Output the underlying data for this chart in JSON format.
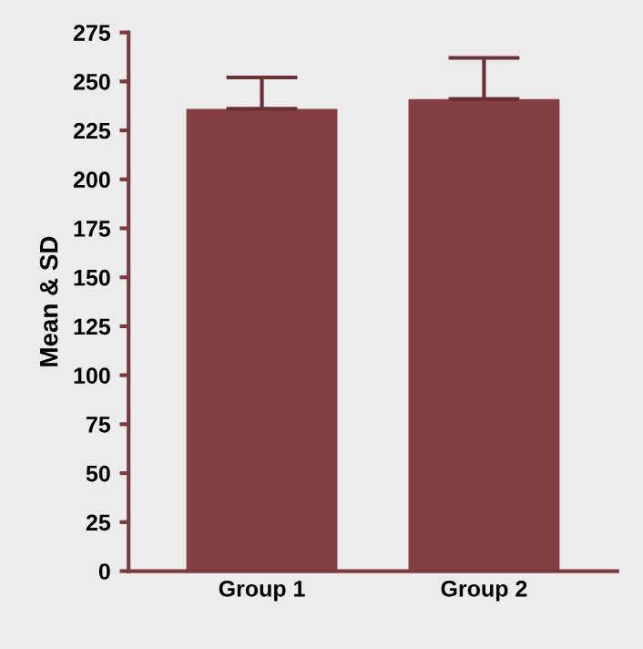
{
  "chart_data": {
    "type": "bar",
    "ylabel": "Mean & SD",
    "categories": [
      "Group 1",
      "Group 2"
    ],
    "values": [
      236,
      241
    ],
    "color": "#843f45",
    "errors": [
      [
        236,
        252
      ],
      [
        241,
        262
      ]
    ],
    "ylim": [
      0,
      275
    ],
    "yticks": [
      0,
      25,
      50,
      75,
      100,
      125,
      150,
      175,
      200,
      225,
      250,
      275
    ],
    "grid": false,
    "legend": false
  }
}
